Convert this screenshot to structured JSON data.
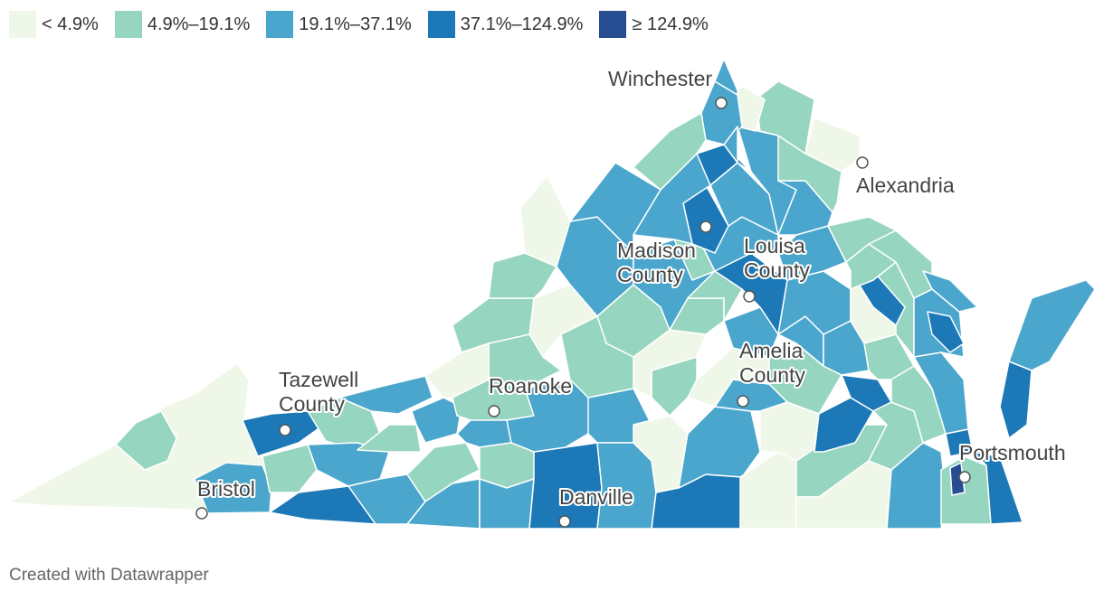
{
  "legend": [
    {
      "label": "< 4.9%",
      "color": "#eff8e8"
    },
    {
      "label": "4.9%–19.1%",
      "color": "#96d5bf"
    },
    {
      "label": "19.1%–37.1%",
      "color": "#4aa6cc"
    },
    {
      "label": "37.1%–124.9%",
      "color": "#1c78b7"
    },
    {
      "label": "≥ 124.9%",
      "color": "#264d92"
    }
  ],
  "cities": {
    "winchester": {
      "name": "Winchester"
    },
    "alexandria": {
      "name": "Alexandria"
    },
    "madison": {
      "name": "Madison County"
    },
    "louisa": {
      "name": "Louisa County"
    },
    "amelia": {
      "name": "Amelia County"
    },
    "tazewell": {
      "name": "Tazewell County"
    },
    "roanoke": {
      "name": "Roanoke"
    },
    "bristol": {
      "name": "Bristol"
    },
    "danville": {
      "name": "Danville"
    },
    "portsmouth": {
      "name": "Portsmouth"
    }
  },
  "footer": {
    "credit": "Created with Datawrapper"
  }
}
